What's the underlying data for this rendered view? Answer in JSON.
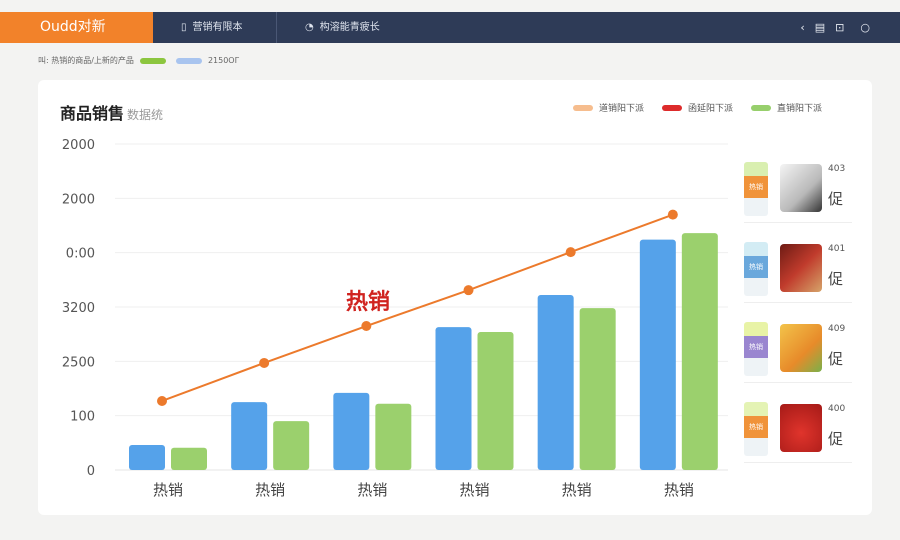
{
  "header": {
    "brand": "Oudd对新",
    "tabs": [
      {
        "icon": "chart-icon",
        "label": "营销有限本"
      },
      {
        "icon": "bell-icon",
        "label": "构溶能青疲长"
      }
    ],
    "icons": [
      "share-icon",
      "document-icon",
      "search-icon",
      "chat-icon"
    ]
  },
  "subheader": {
    "text": "叫: 热销的商品/上新的产品",
    "swatch_label": "2150ОГ",
    "colors": [
      "#8cc63f",
      "#a8c4ef"
    ]
  },
  "card": {
    "title": "商品销售",
    "subtitle": "数据统"
  },
  "legend": [
    {
      "label": "道销阳下派",
      "color": "#f6bd8e"
    },
    {
      "label": "函延阳下派",
      "color": "#dd2b2b"
    },
    {
      "label": "直销阳下派",
      "color": "#97cf6c"
    }
  ],
  "chart_data": {
    "type": "bar",
    "categories": [
      "热销",
      "热销",
      "热销",
      "热销",
      "热销",
      "热销"
    ],
    "ytick_labels": [
      "0",
      "100",
      "2500",
      "3200",
      "0:00",
      "2000",
      "2000"
    ],
    "ylim": [
      0,
      6
    ],
    "grid": true,
    "series": [
      {
        "type": "bar",
        "color": "#55a2ea",
        "values": [
          0.46,
          1.25,
          1.42,
          2.63,
          3.22,
          4.24
        ]
      },
      {
        "type": "bar",
        "color": "#9bd06d",
        "values": [
          0.41,
          0.9,
          1.22,
          2.54,
          2.98,
          4.36
        ]
      },
      {
        "type": "line",
        "color": "#ec7a2c",
        "values": [
          1.27,
          1.97,
          2.65,
          3.31,
          4.01,
          4.7
        ]
      }
    ],
    "annotation": "热销",
    "annotation_color": "#d0231f"
  },
  "products": [
    {
      "tag": "热销",
      "tag_color": "#f0933a",
      "top_color": "#d9efb0",
      "number": "403",
      "name": "促",
      "image": "shopping-bag"
    },
    {
      "tag": "热销",
      "tag_color": "#6aa8dc",
      "top_color": "#d3ecf4",
      "number": "401",
      "name": "促",
      "image": "gift-box"
    },
    {
      "tag": "热销",
      "tag_color": "#9a86d0",
      "top_color": "#e8f3a6",
      "number": "409",
      "name": "促",
      "image": "snack-pack"
    },
    {
      "tag": "热销",
      "tag_color": "#f0933a",
      "top_color": "#e4f3b4",
      "number": "400",
      "name": "促",
      "image": "red-bag"
    }
  ]
}
